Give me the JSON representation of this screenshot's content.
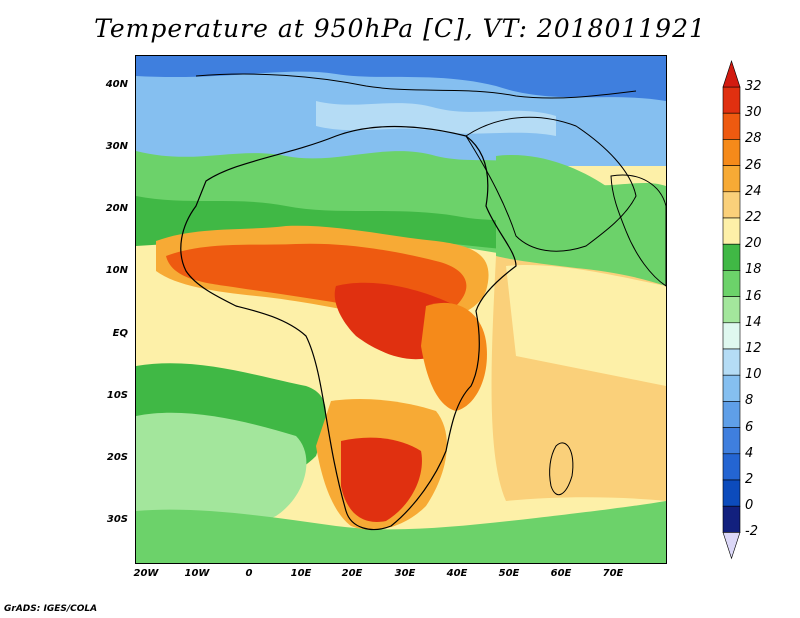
{
  "title": "Temperature at 950hPa [C], VT: 2018011921",
  "footer": "GrADS: IGES/COLA",
  "map": {
    "lat_labels": [
      "40N",
      "30N",
      "20N",
      "10N",
      "EQ",
      "10S",
      "20S",
      "30S"
    ],
    "lon_labels": [
      "20W",
      "10W",
      "0",
      "10E",
      "20E",
      "30E",
      "40E",
      "50E",
      "60E",
      "70E"
    ],
    "lon_range": [
      -22,
      80
    ],
    "lat_range": [
      -37,
      45
    ]
  },
  "colorbar": {
    "unit": "C",
    "levels": [
      "32",
      "30",
      "28",
      "26",
      "24",
      "22",
      "20",
      "18",
      "16",
      "14",
      "12",
      "10",
      "8",
      "6",
      "4",
      "2",
      "0",
      "-2"
    ],
    "colors": [
      "#e03010",
      "#ee5a10",
      "#f58a1a",
      "#f7aa35",
      "#fad07a",
      "#fdf0a8",
      "#40b845",
      "#6cd26a",
      "#a3e69c",
      "#dff8ef",
      "#b5dcf5",
      "#85bff0",
      "#5f9fe8",
      "#3f7fde",
      "#2465d2",
      "#0c4bbc",
      "#12207e"
    ],
    "top_arrow_color": "#d21b10",
    "bottom_arrow_color": "#dcd8f8"
  }
}
